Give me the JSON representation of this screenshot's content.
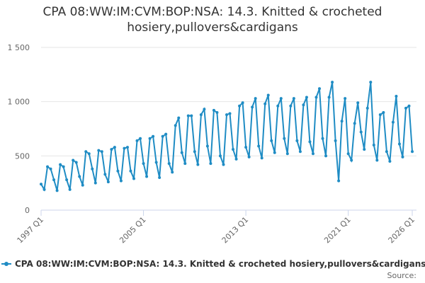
{
  "chart_data": {
    "type": "line",
    "title": "CPA 08:WW:IM:CVM:BOP:NSA: 14.3. Knitted & crocheted hosiery,pullovers&cardigans",
    "categories": [
      "1997 Q1",
      null,
      null,
      null,
      null,
      null,
      null,
      null,
      null,
      null,
      null,
      null,
      null,
      null,
      null,
      null,
      null,
      null,
      null,
      null,
      null,
      null,
      null,
      null,
      null,
      null,
      null,
      null,
      null,
      null,
      null,
      null,
      "2005 Q1",
      null,
      null,
      null,
      null,
      null,
      null,
      null,
      null,
      null,
      null,
      null,
      null,
      null,
      null,
      null,
      null,
      null,
      null,
      null,
      null,
      null,
      null,
      null,
      null,
      null,
      null,
      null,
      null,
      null,
      null,
      null,
      "2013 Q1",
      null,
      null,
      null,
      null,
      null,
      null,
      null,
      null,
      null,
      null,
      null,
      null,
      null,
      null,
      null,
      null,
      null,
      null,
      null,
      null,
      null,
      null,
      null,
      null,
      null,
      null,
      null,
      null,
      null,
      null,
      null,
      "2021 Q1",
      null,
      null,
      null,
      null,
      null,
      null,
      null,
      null,
      null,
      null,
      null,
      null,
      null,
      null,
      null,
      null,
      null,
      null,
      null,
      "2026 Q1"
    ],
    "series": [
      {
        "name": "CPA 08:WW:IM:CVM:BOP:NSA: 14.3. Knitted & crocheted hosiery,pullovers&cardigans",
        "color": "#1f8cc4",
        "values": [
          240,
          190,
          400,
          380,
          280,
          180,
          420,
          400,
          280,
          190,
          460,
          440,
          310,
          230,
          540,
          520,
          380,
          250,
          550,
          540,
          330,
          260,
          560,
          580,
          360,
          270,
          570,
          580,
          360,
          290,
          640,
          660,
          430,
          310,
          660,
          680,
          440,
          300,
          680,
          700,
          430,
          350,
          780,
          850,
          530,
          430,
          870,
          870,
          540,
          420,
          880,
          930,
          590,
          430,
          920,
          900,
          500,
          420,
          880,
          890,
          560,
          470,
          960,
          990,
          580,
          490,
          950,
          1030,
          590,
          480,
          980,
          1060,
          640,
          530,
          960,
          1030,
          660,
          520,
          960,
          1030,
          640,
          540,
          970,
          1040,
          630,
          520,
          1040,
          1120,
          660,
          500,
          1040,
          1180,
          640,
          270,
          820,
          1030,
          520,
          460,
          800,
          990,
          720,
          560,
          940,
          1180,
          600,
          460,
          880,
          900,
          540,
          450,
          810,
          1050,
          610,
          490,
          940,
          960,
          540
        ]
      }
    ],
    "ylim": [
      0,
      1500
    ],
    "yticks": [
      0,
      500,
      {
        "value": 1000,
        "label": "1 000"
      },
      {
        "value": 1500,
        "label": "1 500"
      }
    ],
    "grid": true,
    "source": "Source:"
  }
}
